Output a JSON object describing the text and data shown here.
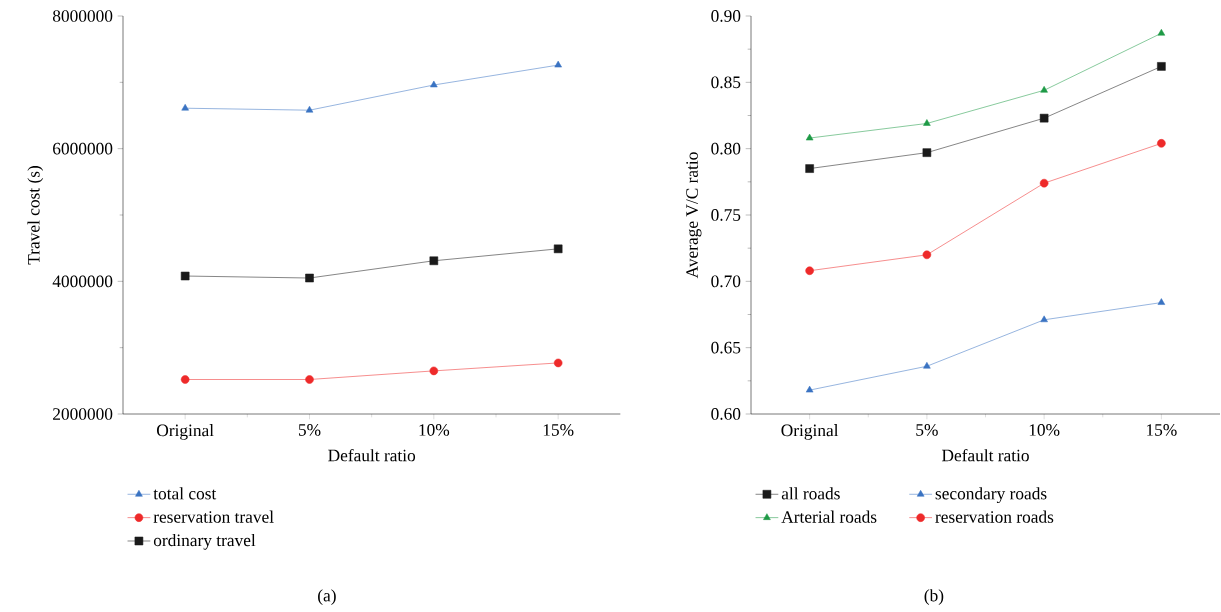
{
  "chart_data": [
    {
      "type": "line",
      "xlabel": "Default ratio",
      "ylabel": "Travel cost (s)",
      "categories": [
        "Original",
        "5%",
        "10%",
        "15%"
      ],
      "ylim": [
        2000000,
        8000000
      ],
      "yticks": [
        2000000,
        4000000,
        6000000,
        8000000
      ],
      "legend": "bottom",
      "grid": false,
      "series": [
        {
          "name": "total cost",
          "color": "#3a73c2",
          "marker": "triangle",
          "values": [
            6610000,
            6580000,
            6960000,
            7260000
          ]
        },
        {
          "name": "reservation travel",
          "color": "#ee2a2a",
          "marker": "circle",
          "values": [
            2520000,
            2520000,
            2650000,
            2770000
          ]
        },
        {
          "name": "ordinary travel",
          "color": "#1a1a1a",
          "marker": "square",
          "values": [
            4080000,
            4050000,
            4310000,
            4490000
          ]
        }
      ],
      "annotations": [
        "(a)"
      ]
    },
    {
      "type": "line",
      "xlabel": "Default ratio",
      "ylabel": "Average V/C ratio",
      "categories": [
        "Original",
        "5%",
        "10%",
        "15%"
      ],
      "ylim": [
        0.6,
        0.9
      ],
      "yticks": [
        {
          "value": 0.6,
          "label": "0.60"
        },
        {
          "value": 0.65,
          "label": "0.65"
        },
        {
          "value": 0.7,
          "label": "0.70"
        },
        {
          "value": 0.75,
          "label": "0.75"
        },
        {
          "value": 0.8,
          "label": "0.80"
        },
        {
          "value": 0.85,
          "label": "0.85"
        },
        {
          "value": 0.9,
          "label": "0.90"
        }
      ],
      "legend": "bottom",
      "grid": false,
      "series": [
        {
          "name": "all roads",
          "color": "#1a1a1a",
          "marker": "square",
          "values": [
            0.785,
            0.797,
            0.823,
            0.862
          ]
        },
        {
          "name": "secondary roads",
          "color": "#3a73c2",
          "marker": "triangle",
          "values": [
            0.618,
            0.636,
            0.671,
            0.684
          ]
        },
        {
          "name": "Arterial roads",
          "color": "#1e9a46",
          "marker": "triangle",
          "values": [
            0.808,
            0.819,
            0.844,
            0.887
          ]
        },
        {
          "name": "reservation roads",
          "color": "#ee2a2a",
          "marker": "circle",
          "values": [
            0.708,
            0.72,
            0.774,
            0.804
          ]
        }
      ],
      "annotations": [
        "(b)"
      ]
    }
  ]
}
